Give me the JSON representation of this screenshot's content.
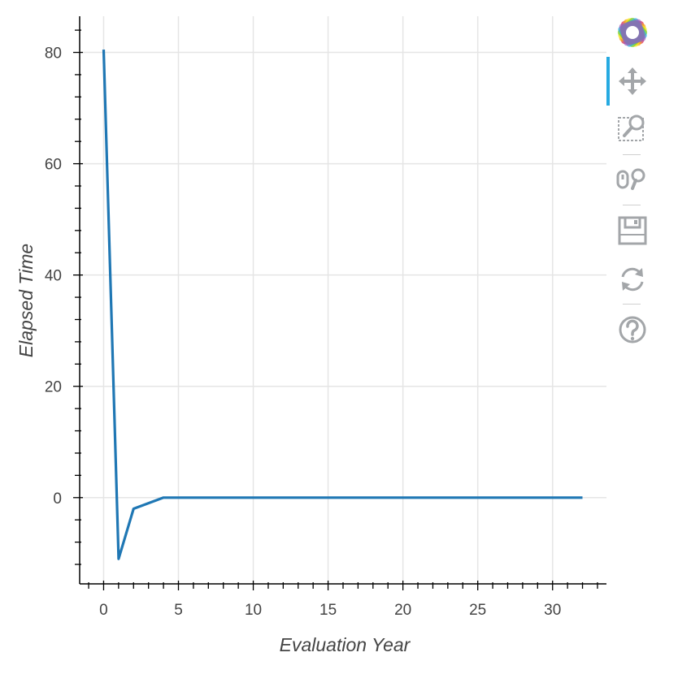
{
  "chart_data": {
    "type": "line",
    "xlabel": "Evaluation Year",
    "ylabel": "Elapsed Time",
    "xlim": [
      -1.6,
      33.6
    ],
    "ylim": [
      -15.5,
      86.5
    ],
    "x_ticks": [
      0,
      5,
      10,
      15,
      20,
      25,
      30
    ],
    "y_ticks": [
      0,
      20,
      40,
      60,
      80
    ],
    "grid": true,
    "legend": "none",
    "line_color": "#1f77b4",
    "series": [
      {
        "x": [
          0,
          1,
          2,
          3,
          4,
          5,
          6,
          7,
          8,
          9,
          10,
          11,
          12,
          13,
          14,
          15,
          16,
          17,
          18,
          19,
          20,
          21,
          22,
          23,
          24,
          25,
          26,
          27,
          28,
          29,
          30,
          31,
          32
        ],
        "values": [
          80.5,
          -11,
          -2,
          -1,
          0,
          0,
          0,
          0,
          0,
          0,
          0,
          0,
          0,
          0,
          0,
          0,
          0,
          0,
          0,
          0,
          0,
          0,
          0,
          0,
          0,
          0,
          0,
          0,
          0,
          0,
          0,
          0,
          0
        ]
      }
    ]
  },
  "toolbar": {
    "tools": [
      {
        "name": "bokeh-logo-icon",
        "interactable": false
      },
      {
        "name": "pan-tool-icon",
        "interactable": true,
        "active": true
      },
      {
        "name": "box-zoom-tool-icon",
        "interactable": true
      },
      {
        "name": "wheel-zoom-tool-icon",
        "interactable": true
      },
      {
        "name": "save-tool-icon",
        "interactable": true
      },
      {
        "name": "reset-tool-icon",
        "interactable": true
      },
      {
        "name": "help-tool-icon",
        "interactable": true
      }
    ],
    "accent_color": "#26aae1",
    "icon_color": "#a3a6a9"
  }
}
